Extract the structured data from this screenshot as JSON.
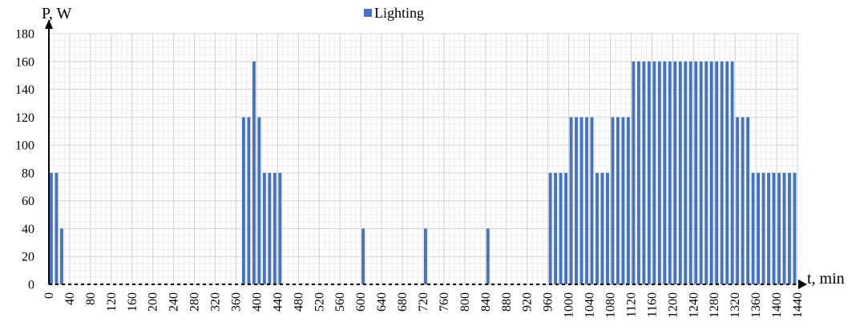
{
  "chart_data": {
    "type": "bar",
    "series": [
      {
        "name": "Lighting",
        "color": "#4472C4",
        "data": [
          [
            0,
            80
          ],
          [
            10,
            80
          ],
          [
            20,
            40
          ],
          [
            370,
            120
          ],
          [
            380,
            120
          ],
          [
            390,
            160
          ],
          [
            400,
            120
          ],
          [
            410,
            80
          ],
          [
            420,
            80
          ],
          [
            430,
            80
          ],
          [
            440,
            80
          ],
          [
            600,
            40
          ],
          [
            720,
            40
          ],
          [
            840,
            40
          ],
          [
            960,
            80
          ],
          [
            970,
            80
          ],
          [
            980,
            80
          ],
          [
            990,
            80
          ],
          [
            1000,
            120
          ],
          [
            1010,
            120
          ],
          [
            1020,
            120
          ],
          [
            1030,
            120
          ],
          [
            1040,
            120
          ],
          [
            1050,
            80
          ],
          [
            1060,
            80
          ],
          [
            1070,
            80
          ],
          [
            1080,
            120
          ],
          [
            1090,
            120
          ],
          [
            1100,
            120
          ],
          [
            1110,
            120
          ],
          [
            1120,
            160
          ],
          [
            1130,
            160
          ],
          [
            1140,
            160
          ],
          [
            1150,
            160
          ],
          [
            1160,
            160
          ],
          [
            1170,
            160
          ],
          [
            1180,
            160
          ],
          [
            1190,
            160
          ],
          [
            1200,
            160
          ],
          [
            1210,
            160
          ],
          [
            1220,
            160
          ],
          [
            1230,
            160
          ],
          [
            1240,
            160
          ],
          [
            1250,
            160
          ],
          [
            1260,
            160
          ],
          [
            1270,
            160
          ],
          [
            1280,
            160
          ],
          [
            1290,
            160
          ],
          [
            1300,
            160
          ],
          [
            1310,
            160
          ],
          [
            1320,
            120
          ],
          [
            1330,
            120
          ],
          [
            1340,
            120
          ],
          [
            1350,
            80
          ],
          [
            1360,
            80
          ],
          [
            1370,
            80
          ],
          [
            1380,
            80
          ],
          [
            1390,
            80
          ],
          [
            1400,
            80
          ],
          [
            1410,
            80
          ],
          [
            1420,
            80
          ],
          [
            1430,
            80
          ]
        ]
      }
    ],
    "title": "",
    "xlabel": "t, min",
    "ylabel": "P, W",
    "xlim": [
      0,
      1440
    ],
    "ylim": [
      0,
      180
    ],
    "x_ticks": [
      0,
      40,
      80,
      120,
      160,
      200,
      240,
      280,
      320,
      360,
      400,
      440,
      480,
      520,
      560,
      600,
      640,
      680,
      720,
      760,
      800,
      840,
      880,
      920,
      960,
      1000,
      1040,
      1080,
      1120,
      1160,
      1200,
      1240,
      1280,
      1320,
      1360,
      1400,
      1440
    ],
    "y_ticks": [
      0,
      20,
      40,
      60,
      80,
      100,
      120,
      140,
      160,
      180
    ],
    "grid": true,
    "legend": "top-center"
  }
}
